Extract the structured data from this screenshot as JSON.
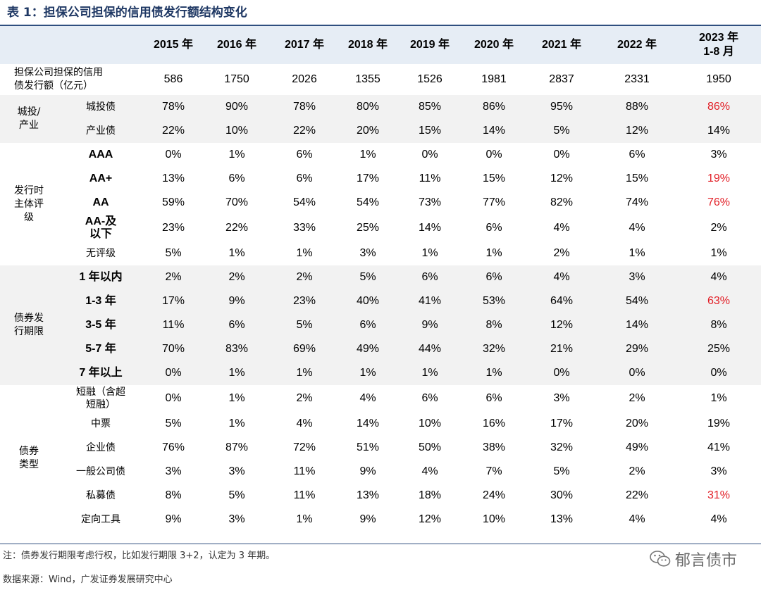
{
  "title": "表 1：担保公司担保的信用债发行额结构变化",
  "header": {
    "years": [
      "2015 年",
      "2016 年",
      "2017 年",
      "2018 年",
      "2019 年",
      "2020 年",
      "2021 年",
      "2022 年",
      "2023 年\n1-8 月"
    ]
  },
  "issuance": {
    "label": "担保公司担保的信用\n债发行额（亿元）",
    "values": [
      "586",
      "1750",
      "2026",
      "1355",
      "1526",
      "1981",
      "2837",
      "2331",
      "1950"
    ]
  },
  "groups": [
    {
      "category": "城投/\n产业",
      "rows": [
        {
          "label": "城投债",
          "values": [
            "78%",
            "90%",
            "78%",
            "80%",
            "85%",
            "86%",
            "95%",
            "88%",
            "86%"
          ],
          "highlight_last": true
        },
        {
          "label": "产业债",
          "values": [
            "22%",
            "10%",
            "22%",
            "20%",
            "15%",
            "14%",
            "5%",
            "12%",
            "14%"
          ],
          "highlight_last": false
        }
      ]
    },
    {
      "category": "发行时\n主体评\n级",
      "rows": [
        {
          "label": "AAA",
          "values": [
            "0%",
            "1%",
            "6%",
            "1%",
            "0%",
            "0%",
            "0%",
            "6%",
            "3%"
          ],
          "highlight_last": false
        },
        {
          "label": "AA+",
          "values": [
            "13%",
            "6%",
            "6%",
            "17%",
            "11%",
            "15%",
            "12%",
            "15%",
            "19%"
          ],
          "highlight_last": true
        },
        {
          "label": "AA",
          "values": [
            "59%",
            "70%",
            "54%",
            "54%",
            "73%",
            "77%",
            "82%",
            "74%",
            "76%"
          ],
          "highlight_last": true
        },
        {
          "label": "AA-及\n以下",
          "values": [
            "23%",
            "22%",
            "33%",
            "25%",
            "14%",
            "6%",
            "4%",
            "4%",
            "2%"
          ],
          "highlight_last": false
        },
        {
          "label": "无评级",
          "values": [
            "5%",
            "1%",
            "1%",
            "3%",
            "1%",
            "1%",
            "2%",
            "1%",
            "1%"
          ],
          "highlight_last": false
        }
      ]
    },
    {
      "category": "债券发\n行期限",
      "rows": [
        {
          "label": "1 年以内",
          "values": [
            "2%",
            "2%",
            "2%",
            "5%",
            "6%",
            "6%",
            "4%",
            "3%",
            "4%"
          ],
          "highlight_last": false
        },
        {
          "label": "1-3 年",
          "values": [
            "17%",
            "9%",
            "23%",
            "40%",
            "41%",
            "53%",
            "64%",
            "54%",
            "63%"
          ],
          "highlight_last": true
        },
        {
          "label": "3-5 年",
          "values": [
            "11%",
            "6%",
            "5%",
            "6%",
            "9%",
            "8%",
            "12%",
            "14%",
            "8%"
          ],
          "highlight_last": false
        },
        {
          "label": "5-7 年",
          "values": [
            "70%",
            "83%",
            "69%",
            "49%",
            "44%",
            "32%",
            "21%",
            "29%",
            "25%"
          ],
          "highlight_last": false
        },
        {
          "label": "7 年以上",
          "values": [
            "0%",
            "1%",
            "1%",
            "1%",
            "1%",
            "1%",
            "0%",
            "0%",
            "0%"
          ],
          "highlight_last": false
        }
      ]
    },
    {
      "category": "债券\n类型",
      "rows": [
        {
          "label": "短融（含超\n短融）",
          "values": [
            "0%",
            "1%",
            "2%",
            "4%",
            "6%",
            "6%",
            "3%",
            "2%",
            "1%"
          ],
          "highlight_last": false
        },
        {
          "label": "中票",
          "values": [
            "5%",
            "1%",
            "4%",
            "14%",
            "10%",
            "16%",
            "17%",
            "20%",
            "19%"
          ],
          "highlight_last": false
        },
        {
          "label": "企业债",
          "values": [
            "76%",
            "87%",
            "72%",
            "51%",
            "50%",
            "38%",
            "32%",
            "49%",
            "41%"
          ],
          "highlight_last": false
        },
        {
          "label": "一般公司债",
          "values": [
            "3%",
            "3%",
            "11%",
            "9%",
            "4%",
            "7%",
            "5%",
            "2%",
            "3%"
          ],
          "highlight_last": false
        },
        {
          "label": "私募债",
          "values": [
            "8%",
            "5%",
            "11%",
            "13%",
            "18%",
            "24%",
            "30%",
            "22%",
            "31%"
          ],
          "highlight_last": true
        },
        {
          "label": "定向工具",
          "values": [
            "9%",
            "3%",
            "1%",
            "9%",
            "12%",
            "10%",
            "13%",
            "4%",
            "4%"
          ],
          "highlight_last": false
        }
      ]
    }
  ],
  "note": "注：债券发行期限考虑行权，比如发行期限 3+2，认定为 3 年期。",
  "source": "数据来源：Wind，广发证券发展研究中心",
  "watermark": {
    "text": "郁言债市",
    "icon": "wechat-icon"
  },
  "colors": {
    "highlight": "#e21e26",
    "title": "#1f3864",
    "header_bg": "#e6edf5",
    "stripe_bg": "#f2f2f2"
  }
}
